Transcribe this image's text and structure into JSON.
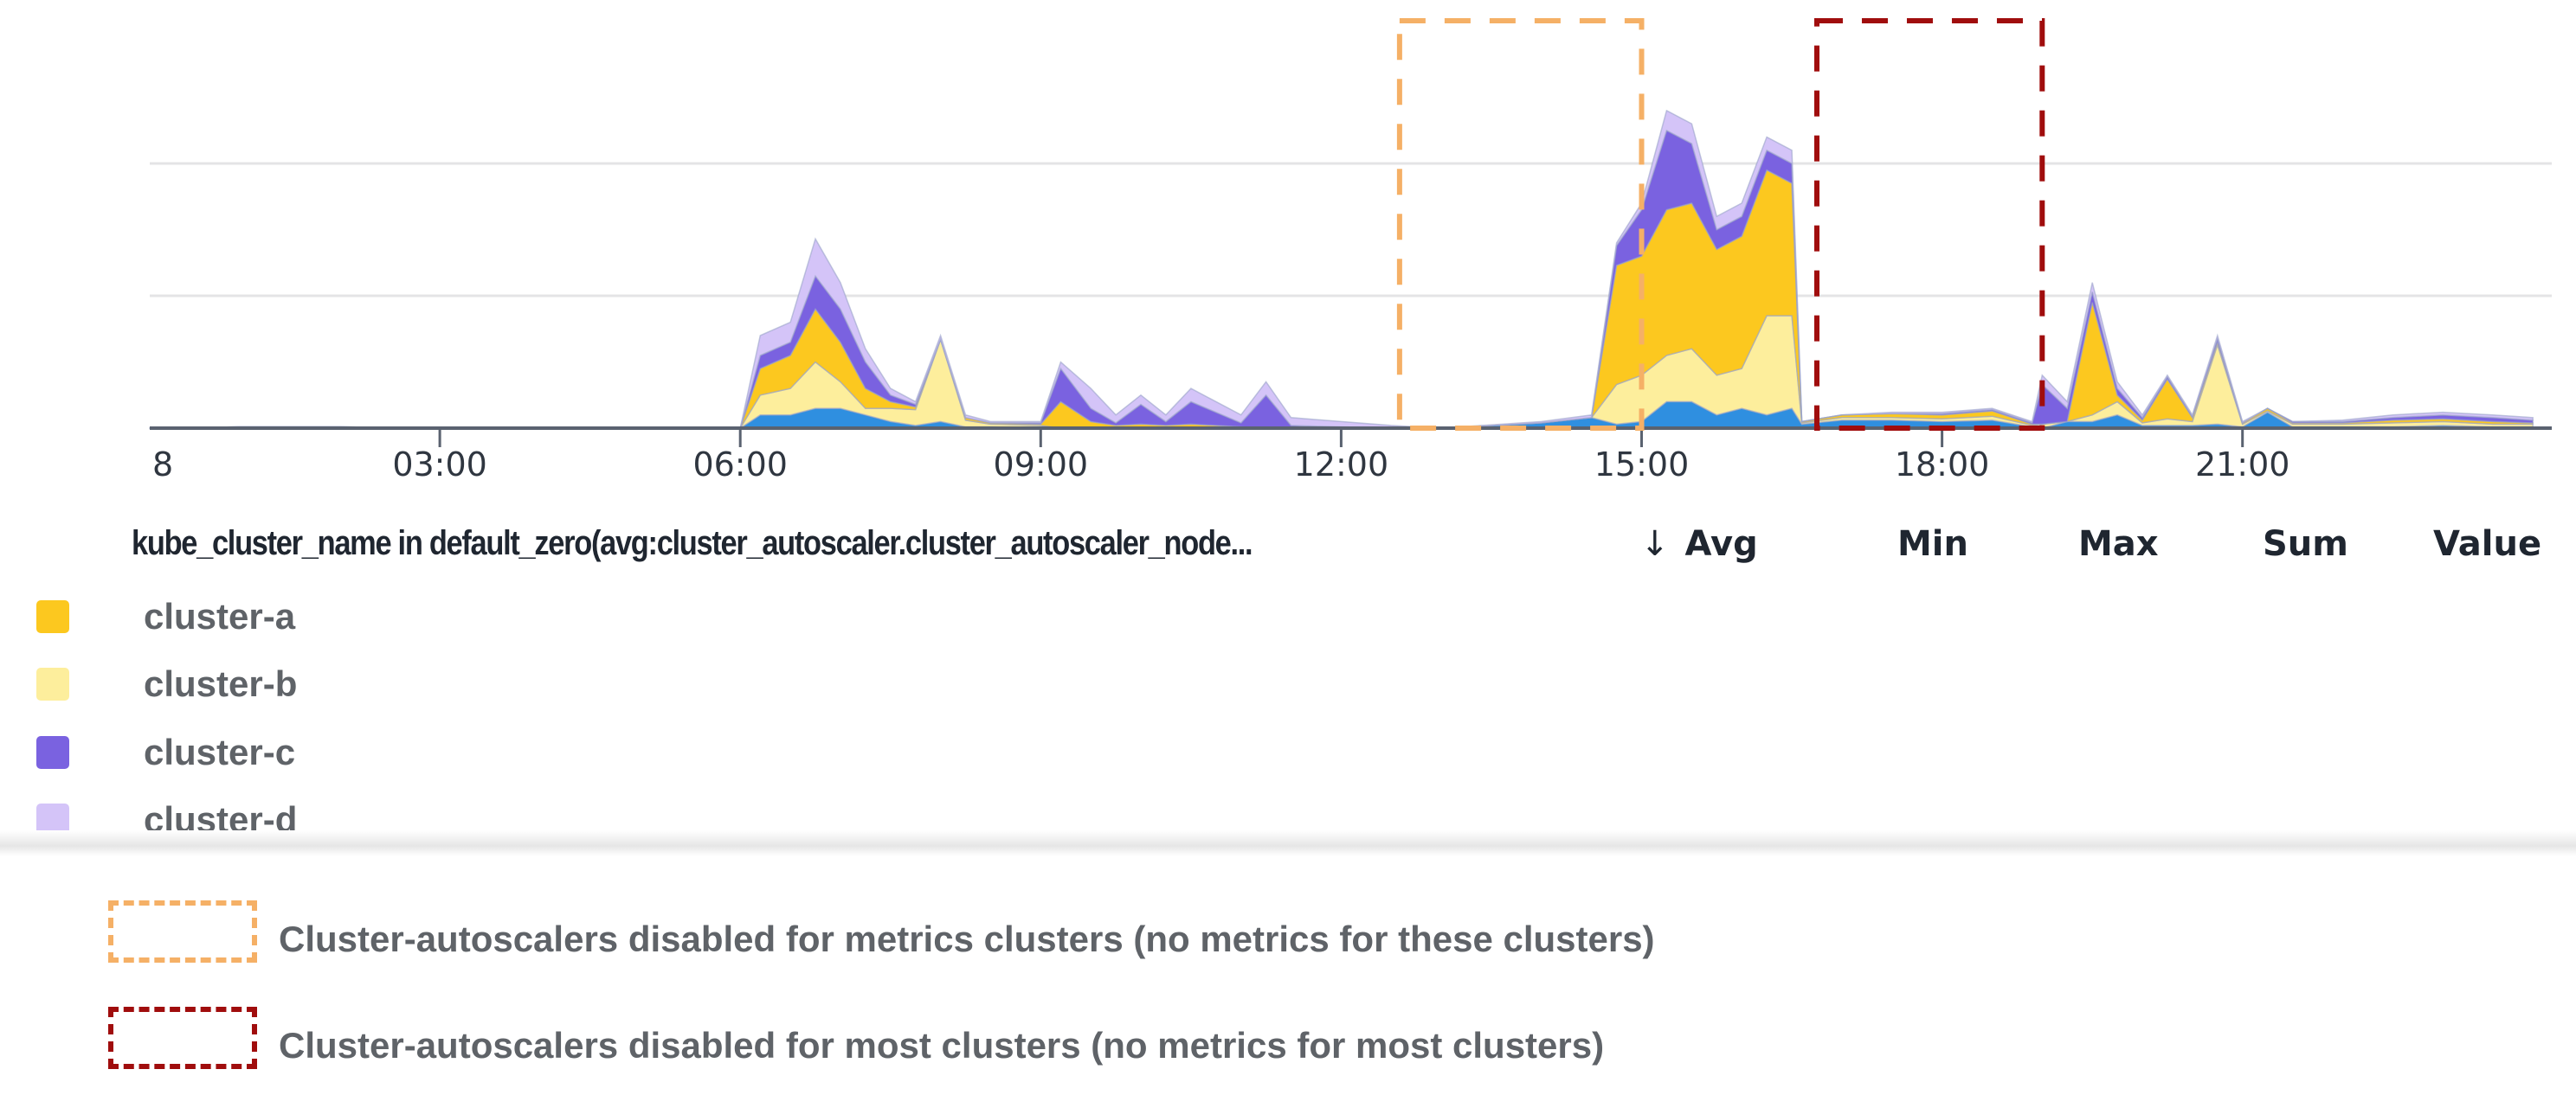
{
  "chart_data": {
    "type": "area",
    "stacked": true,
    "title": "",
    "xlabel": "",
    "ylabel": "",
    "x_first_label_partial": "8",
    "x_tick_labels": [
      "03:00",
      "06:00",
      "09:00",
      "12:00",
      "15:00",
      "18:00",
      "21:00"
    ],
    "x_ticks_hours": [
      3,
      6,
      9,
      12,
      15,
      18,
      21
    ],
    "xlim": [
      0,
      24
    ],
    "ylim": [
      0,
      2.6
    ],
    "y_gridlines": [
      1,
      2
    ],
    "grid": true,
    "x": [
      0,
      1,
      2,
      3,
      4,
      5,
      6,
      6.2,
      6.5,
      6.75,
      7,
      7.25,
      7.5,
      7.75,
      8,
      8.25,
      8.5,
      9,
      9.2,
      9.5,
      9.75,
      10,
      10.25,
      10.5,
      11,
      11.25,
      11.5,
      12,
      12.5,
      13,
      14,
      14.5,
      14.75,
      15,
      15.25,
      15.5,
      15.75,
      16,
      16.25,
      16.5,
      16.6,
      17,
      17.5,
      18,
      18.5,
      18.9,
      19,
      19.25,
      19.5,
      19.75,
      20,
      20.25,
      20.5,
      20.75,
      21,
      21.25,
      21.5,
      22,
      22.5,
      23,
      23.5,
      23.9
    ],
    "series": [
      {
        "name": "",
        "color": "#2f8fe0",
        "values": [
          0,
          0,
          0,
          0,
          0,
          0,
          0,
          0.1,
          0.1,
          0.15,
          0.15,
          0.1,
          0.05,
          0.02,
          0.05,
          0.01,
          0.01,
          0,
          0,
          0,
          0,
          0,
          0,
          0,
          0,
          0,
          0,
          0,
          0,
          0,
          0.04,
          0.08,
          0.03,
          0.05,
          0.2,
          0.2,
          0.1,
          0.15,
          0.1,
          0.15,
          0.03,
          0.06,
          0.06,
          0.05,
          0.06,
          0.01,
          0,
          0.05,
          0.05,
          0.1,
          0.02,
          0.02,
          0.02,
          0.03,
          0.01,
          0.12,
          0.01,
          0.01,
          0.01,
          0.02,
          0.01,
          0.01
        ]
      },
      {
        "name": "cluster-b",
        "color": "#fdee9c",
        "values": [
          0,
          0.01,
          0.01,
          0,
          0,
          0,
          0,
          0.15,
          0.2,
          0.35,
          0.2,
          0.05,
          0.1,
          0.12,
          0.62,
          0.05,
          0.02,
          0.02,
          0,
          0,
          0,
          0,
          0,
          0,
          0,
          0,
          0,
          0,
          0,
          0,
          0,
          0,
          0.3,
          0.35,
          0.35,
          0.4,
          0.3,
          0.3,
          0.75,
          0.7,
          0.01,
          0.02,
          0.02,
          0.02,
          0.03,
          0.01,
          0.03,
          0,
          0.05,
          0.1,
          0.02,
          0.05,
          0.03,
          0.6,
          0.02,
          0.01,
          0.02,
          0.02,
          0.03,
          0.03,
          0.02,
          0.02
        ]
      },
      {
        "name": "cluster-a",
        "color": "#fcc81f",
        "values": [
          0,
          0,
          0,
          0,
          0,
          0,
          0,
          0.2,
          0.25,
          0.4,
          0.3,
          0.15,
          0.05,
          0.02,
          0,
          0.02,
          0.01,
          0.01,
          0.2,
          0.05,
          0.02,
          0.03,
          0.02,
          0.03,
          0.01,
          0,
          0,
          0,
          0,
          0,
          0,
          0,
          0.9,
          0.9,
          1.1,
          1.1,
          0.95,
          1.0,
          1.1,
          1.0,
          0.01,
          0.02,
          0.03,
          0.03,
          0.04,
          0.01,
          0,
          0,
          0.85,
          0.05,
          0.02,
          0.3,
          0.03,
          0.02,
          0.01,
          0.02,
          0.01,
          0.01,
          0.02,
          0.02,
          0.02,
          0.01
        ]
      },
      {
        "name": "cluster-c",
        "color": "#7a62e0",
        "values": [
          0,
          0,
          0,
          0,
          0,
          0,
          0,
          0.1,
          0.1,
          0.25,
          0.25,
          0.2,
          0.05,
          0.02,
          0,
          0,
          0,
          0.01,
          0.25,
          0.1,
          0.02,
          0.15,
          0.03,
          0.17,
          0.03,
          0.25,
          0.02,
          0.01,
          0,
          0,
          0,
          0,
          0.15,
          0.35,
          0.6,
          0.45,
          0.15,
          0.15,
          0.15,
          0.15,
          0,
          0,
          0,
          0.01,
          0.01,
          0.01,
          0.3,
          0.1,
          0.08,
          0.05,
          0.02,
          0.02,
          0.01,
          0.03,
          0,
          0,
          0.01,
          0.01,
          0.02,
          0.03,
          0.03,
          0.02
        ]
      },
      {
        "name": "cluster-d",
        "color": "#d4c4f8",
        "values": [
          0,
          0,
          0,
          0,
          0,
          0,
          0,
          0.15,
          0.15,
          0.28,
          0.2,
          0.1,
          0.05,
          0.02,
          0.03,
          0.02,
          0.01,
          0.01,
          0.05,
          0.15,
          0.06,
          0.07,
          0.05,
          0.1,
          0.06,
          0.1,
          0.06,
          0.04,
          0.02,
          0,
          0.01,
          0.02,
          0.02,
          0.05,
          0.15,
          0.15,
          0.1,
          0.1,
          0.1,
          0.1,
          0,
          0,
          0.01,
          0.01,
          0.01,
          0.01,
          0.07,
          0.05,
          0.07,
          0.05,
          0.02,
          0.01,
          0.01,
          0.02,
          0.01,
          0,
          0,
          0.01,
          0.02,
          0.02,
          0.02,
          0.02
        ]
      }
    ],
    "annotations": [
      {
        "style": "dashed",
        "color": "#f5b066",
        "x_range": [
          "12:35",
          "15:00"
        ]
      },
      {
        "style": "dashed",
        "color": "#a00d0d",
        "x_range": [
          "16:45",
          "19:00"
        ]
      }
    ]
  },
  "legend": {
    "header": "kube_cluster_name in default_zero(avg:cluster_autoscaler.cluster_autoscaler_node...",
    "sort_icon": "arrow-down-icon",
    "sort_arrow": "↓",
    "columns": [
      "Avg",
      "Min",
      "Max",
      "Sum",
      "Value"
    ],
    "items": [
      {
        "name": "cluster-a",
        "color": "#fcc81f"
      },
      {
        "name": "cluster-b",
        "color": "#fdee9c"
      },
      {
        "name": "cluster-c",
        "color": "#7a62e0"
      },
      {
        "name": "cluster-d",
        "color": "#d4c4f8"
      }
    ]
  },
  "notes": [
    {
      "text": "Cluster-autoscalers disabled for metrics clusters (no metrics for these clusters)",
      "color": "#f5b066"
    },
    {
      "text": "Cluster-autoscalers disabled for most clusters (no metrics for most clusters)",
      "color": "#a00d0d"
    }
  ]
}
